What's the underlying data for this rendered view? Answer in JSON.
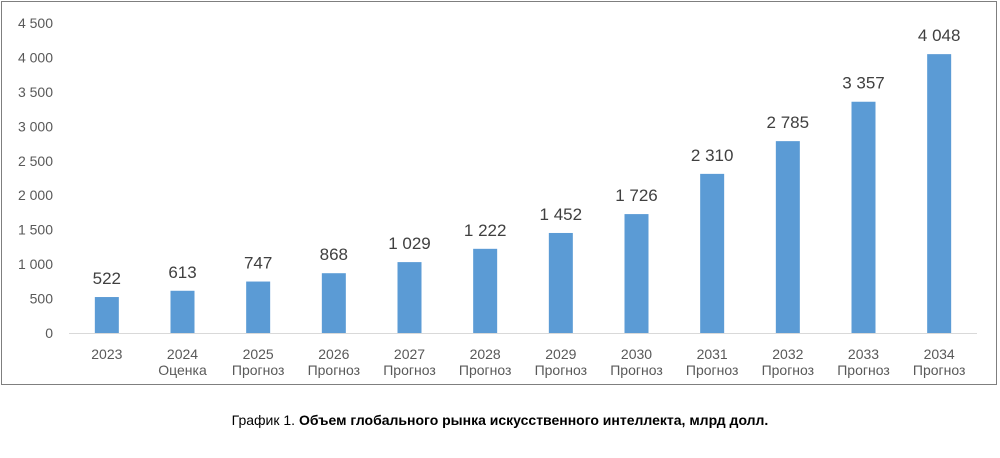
{
  "chart_data": {
    "type": "bar",
    "title": "",
    "xlabel": "",
    "ylabel": "",
    "ylim": [
      0,
      4500
    ],
    "yticks": [
      0,
      500,
      1000,
      1500,
      2000,
      2500,
      3000,
      3500,
      4000,
      4500
    ],
    "ytick_labels": [
      "0",
      "500",
      "1 000",
      "1 500",
      "2 000",
      "2 500",
      "3 000",
      "3 500",
      "4 000",
      "4 500"
    ],
    "categories": [
      [
        "2023"
      ],
      [
        "2024",
        "Оценка"
      ],
      [
        "2025",
        "Прогноз"
      ],
      [
        "2026",
        "Прогноз"
      ],
      [
        "2027",
        "Прогноз"
      ],
      [
        "2028",
        "Прогноз"
      ],
      [
        "2029",
        "Прогноз"
      ],
      [
        "2030",
        "Прогноз"
      ],
      [
        "2031",
        "Прогноз"
      ],
      [
        "2032",
        "Прогноз"
      ],
      [
        "2033",
        "Прогноз"
      ],
      [
        "2034",
        "Прогноз"
      ]
    ],
    "values": [
      522,
      613,
      747,
      868,
      1029,
      1222,
      1452,
      1726,
      2310,
      2785,
      3357,
      4048
    ],
    "data_labels": [
      "522",
      "613",
      "747",
      "868",
      "1 029",
      "1 222",
      "1 452",
      "1 726",
      "2 310",
      "2 785",
      "3 357",
      "4 048"
    ],
    "bar_color": "#5b9bd5",
    "grid": false
  },
  "caption": {
    "prefix": "График 1. ",
    "title": "Объем глобального рынка искусственного интеллекта, млрд долл."
  }
}
